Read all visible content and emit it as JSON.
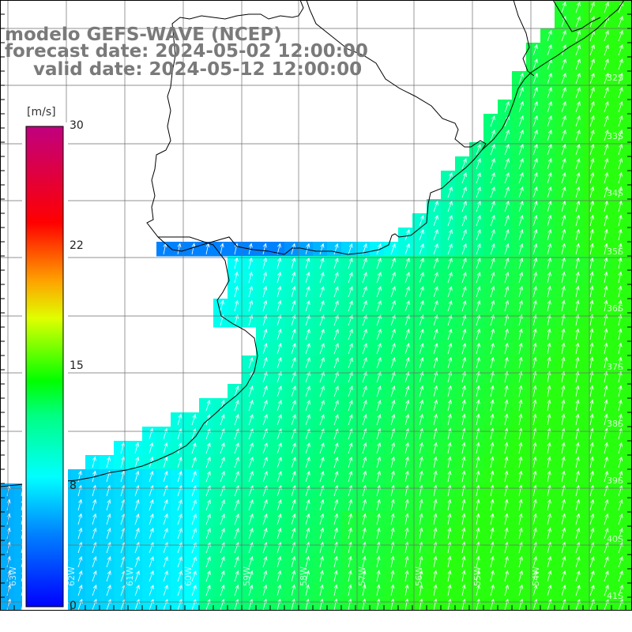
{
  "title": {
    "line1": "modelo GEFS-WAVE (NCEP)",
    "line2": "forecast date: 2024-05-02 12:00:00",
    "line3": "valid date: 2024-05-12 12:00:00"
  },
  "colorbar": {
    "unit": "[m/s]",
    "ticks": [
      "30",
      "22",
      "15",
      "8",
      "0"
    ],
    "tick_values": [
      30,
      22,
      15,
      8,
      0
    ],
    "min": 0,
    "max": 30,
    "colors": [
      "#0000ff",
      "#0080ff",
      "#00ffff",
      "#00ff00",
      "#ffff00",
      "#ff8000",
      "#ff0000",
      "#c0007f"
    ]
  },
  "map": {
    "land_color": "#ffffff",
    "grid_color": "#6e6e6e",
    "coastline_color": "#000000",
    "vector_color": "#ffffff",
    "lat_labels": [
      "32S",
      "33S",
      "34S",
      "35S",
      "36S",
      "37S",
      "38S",
      "39S",
      "40S",
      "41S"
    ],
    "lon_labels": [
      "63W",
      "62W",
      "61W",
      "60W",
      "59W",
      "58W",
      "57W",
      "56W",
      "55W",
      "54W"
    ]
  }
}
